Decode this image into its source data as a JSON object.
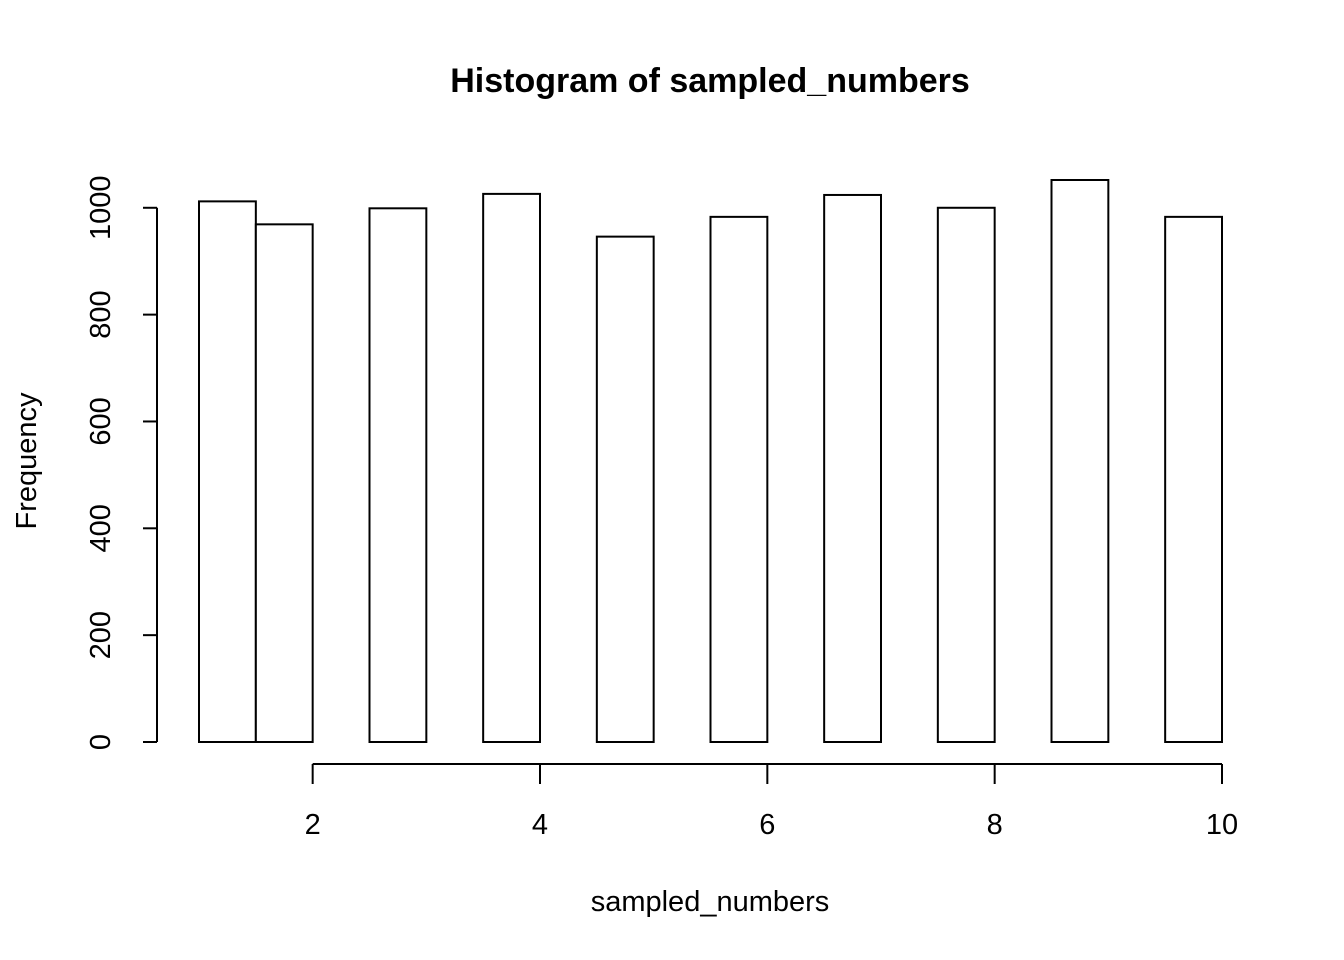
{
  "chart_data": {
    "type": "bar",
    "title": "Histogram of sampled_numbers",
    "xlabel": "sampled_numbers",
    "ylabel": "Frequency",
    "bins": [
      {
        "start": 1.0,
        "end": 1.5,
        "count": 1012
      },
      {
        "start": 1.5,
        "end": 2.0,
        "count": 969
      },
      {
        "start": 2.5,
        "end": 3.0,
        "count": 999
      },
      {
        "start": 3.5,
        "end": 4.0,
        "count": 1026
      },
      {
        "start": 4.5,
        "end": 5.0,
        "count": 946
      },
      {
        "start": 5.5,
        "end": 6.0,
        "count": 983
      },
      {
        "start": 6.5,
        "end": 7.0,
        "count": 1024
      },
      {
        "start": 7.5,
        "end": 8.0,
        "count": 1000
      },
      {
        "start": 8.5,
        "end": 9.0,
        "count": 1052
      },
      {
        "start": 9.5,
        "end": 10.0,
        "count": 983
      }
    ],
    "x_ticks": [
      "2",
      "4",
      "6",
      "8",
      "10"
    ],
    "y_ticks": [
      "0",
      "200",
      "400",
      "600",
      "800",
      "1000"
    ],
    "xlim": [
      1,
      10
    ],
    "ylim": [
      0,
      1052
    ],
    "grid": false,
    "legend": "none"
  }
}
